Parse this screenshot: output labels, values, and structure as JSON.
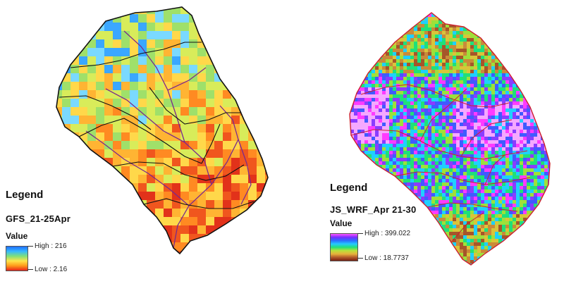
{
  "left_panel": {
    "legend_title": "Legend",
    "layer_name": "GFS_21-25Apr",
    "value_label": "Value",
    "high_label": "High : 216",
    "low_label": "Low : 2.16",
    "ramp_colors": [
      "#1f6fff",
      "#35b8ff",
      "#7fe07a",
      "#ffe44a",
      "#ff9a1a",
      "#e8231a"
    ],
    "pixel_palette": [
      "#3aa7ff",
      "#7ad9ff",
      "#9fe06a",
      "#d8ec5a",
      "#ffd84a",
      "#ffb433",
      "#ff8a22",
      "#f0561e",
      "#e2321a"
    ],
    "boundary_color": "#111111",
    "river_color": "#7a2a8c"
  },
  "right_panel": {
    "legend_title": "Legend",
    "layer_name": "JS_WRF_Apr 21-30",
    "value_label": "Value",
    "high_label": "High : 399.022",
    "low_label": "Low : 18.7737",
    "ramp_colors": [
      "#ff55ff",
      "#7a2cff",
      "#2a6dff",
      "#25c7ff",
      "#22e07a",
      "#b9e23a",
      "#e7b23b",
      "#b25a2a",
      "#7a1f10"
    ],
    "pixel_palette": [
      "#f5a8ff",
      "#ff3bff",
      "#8a3cff",
      "#3f5bff",
      "#1fd0ff",
      "#1fe07a",
      "#9ee03a",
      "#d9c43a",
      "#c98a3a",
      "#a6552a"
    ],
    "boundary_color": "#cc1f2e"
  }
}
